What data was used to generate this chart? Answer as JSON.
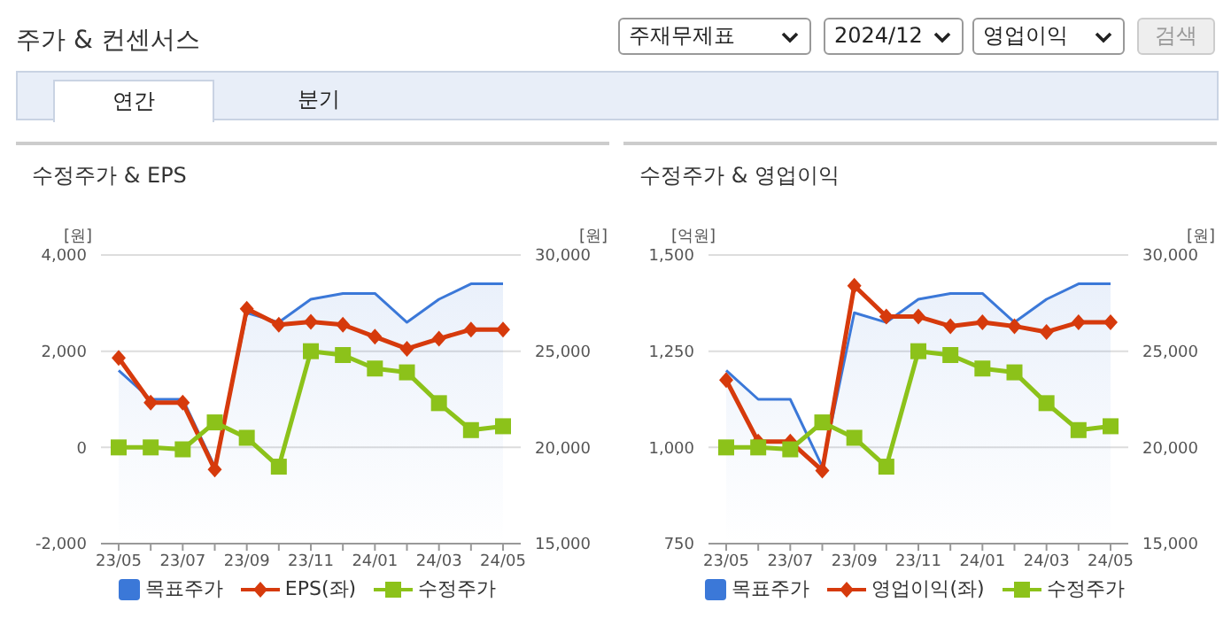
{
  "chart_data": [
    {
      "type": "other",
      "title": "주가 & 컨센서스",
      "annotations": [
        "주재무제표",
        "2024/12",
        "영업이익",
        "검색",
        "연간",
        "분기"
      ]
    },
    {
      "type": "line",
      "title": "수정주가 & EPS",
      "categories": [
        "23/05",
        null,
        "23/07",
        null,
        "23/09",
        null,
        "23/11",
        null,
        "24/01",
        null,
        "24/03",
        null,
        "24/05"
      ],
      "ylabel": "[원]",
      "y2label": "[원]",
      "ylim": [
        -2000,
        4000
      ],
      "yticks": [
        {
          "value": -2000,
          "label": "-2,000"
        },
        {
          "value": 0,
          "label": "0"
        },
        {
          "value": 2000,
          "label": "2,000"
        },
        {
          "value": 4000,
          "label": "4,000"
        }
      ],
      "y2lim": [
        15000,
        30000
      ],
      "y2ticks": [
        {
          "value": 15000,
          "label": "15,000"
        },
        {
          "value": 20000,
          "label": "20,000"
        },
        {
          "value": 25000,
          "label": "25,000"
        },
        {
          "value": 30000,
          "label": "30,000"
        }
      ],
      "grid": "y",
      "legend": "bottom",
      "series": [
        {
          "name": "목표주가",
          "type": "area",
          "axis": "y2",
          "color": "#3b78d8",
          "marker": "none",
          "values": [
            24000,
            22500,
            22500,
            19000,
            27000,
            26500,
            27700,
            28000,
            28000,
            26500,
            27700,
            28500,
            28500
          ]
        },
        {
          "name": "EPS(좌)",
          "type": "line",
          "color": "#d63a0c",
          "marker": "diamond",
          "values": [
            1860,
            930,
            930,
            -460,
            2880,
            2550,
            2610,
            2550,
            2300,
            2050,
            2260,
            2450,
            2450
          ]
        },
        {
          "name": "수정주가",
          "type": "line",
          "axis": "y2",
          "color": "#8cc21a",
          "marker": "square",
          "values": [
            20000,
            20000,
            19900,
            21300,
            20500,
            19000,
            25000,
            24800,
            24100,
            23900,
            22300,
            20900,
            21100
          ]
        }
      ]
    },
    {
      "type": "line",
      "title": "수정주가 & 영업이익",
      "categories": [
        "23/05",
        null,
        "23/07",
        null,
        "23/09",
        null,
        "23/11",
        null,
        "24/01",
        null,
        "24/03",
        null,
        "24/05"
      ],
      "ylabel": "[억원]",
      "y2label": "[원]",
      "ylim": [
        750,
        1500
      ],
      "yticks": [
        {
          "value": 750,
          "label": "750"
        },
        {
          "value": 1000,
          "label": "1,000"
        },
        {
          "value": 1250,
          "label": "1,250"
        },
        {
          "value": 1500,
          "label": "1,500"
        }
      ],
      "y2lim": [
        15000,
        30000
      ],
      "y2ticks": [
        {
          "value": 15000,
          "label": "15,000"
        },
        {
          "value": 20000,
          "label": "20,000"
        },
        {
          "value": 25000,
          "label": "25,000"
        },
        {
          "value": 30000,
          "label": "30,000"
        }
      ],
      "grid": "y",
      "legend": "bottom",
      "series": [
        {
          "name": "목표주가",
          "type": "area",
          "axis": "y2",
          "color": "#3b78d8",
          "marker": "none",
          "values": [
            24000,
            22500,
            22500,
            19000,
            27000,
            26500,
            27700,
            28000,
            28000,
            26500,
            27700,
            28500,
            28500
          ]
        },
        {
          "name": "영업이익(좌)",
          "type": "line",
          "color": "#d63a0c",
          "marker": "diamond",
          "values": [
            1175,
            1015,
            1015,
            940,
            1420,
            1340,
            1340,
            1315,
            1325,
            1315,
            1300,
            1325,
            1325
          ]
        },
        {
          "name": "수정주가",
          "type": "line",
          "axis": "y2",
          "color": "#8cc21a",
          "marker": "square",
          "values": [
            20000,
            20000,
            19900,
            21300,
            20500,
            19000,
            25000,
            24800,
            24100,
            23900,
            22300,
            20900,
            21100
          ]
        }
      ]
    }
  ]
}
